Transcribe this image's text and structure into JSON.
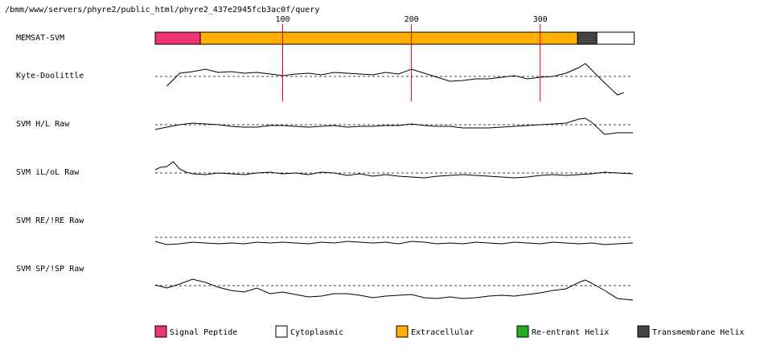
{
  "path_title": "/bmm/www/servers/phyre2/public_html/phyre2_437e2945fcb3ac0f/query",
  "chart_data": {
    "type": "line",
    "x_range": [
      1,
      372
    ],
    "x_ticks": [
      100,
      200,
      300
    ],
    "tracks": [
      {
        "label": "MEMSAT-SVM",
        "kind": "segments"
      },
      {
        "label": "Kyte-Doolittle",
        "kind": "line"
      },
      {
        "label": "SVM H/L Raw",
        "kind": "line"
      },
      {
        "label": "SVM iL/oL Raw",
        "kind": "line"
      },
      {
        "label": "SVM RE/!RE Raw",
        "kind": "line"
      },
      {
        "label": "SVM SP/!SP Raw",
        "kind": "line"
      }
    ],
    "memsat_segments": [
      {
        "class": "Signal Peptide",
        "start": 1,
        "end": 35
      },
      {
        "class": "Extracellular",
        "start": 36,
        "end": 328
      },
      {
        "class": "Transmembrane Helix",
        "start": 329,
        "end": 343
      },
      {
        "class": "Cytoplasmic",
        "start": 344,
        "end": 372
      }
    ],
    "series": [
      {
        "track": "Kyte-Doolittle",
        "x": [
          10,
          20,
          30,
          40,
          50,
          60,
          70,
          80,
          90,
          100,
          110,
          120,
          130,
          140,
          150,
          160,
          170,
          180,
          190,
          200,
          210,
          220,
          230,
          240,
          250,
          260,
          270,
          280,
          290,
          300,
          310,
          320,
          330,
          335,
          340,
          350,
          360,
          365
        ],
        "y": [
          -1.2,
          0.4,
          0.6,
          0.9,
          0.5,
          0.6,
          0.4,
          0.5,
          0.3,
          0.1,
          0.3,
          0.4,
          0.2,
          0.5,
          0.4,
          0.3,
          0.2,
          0.5,
          0.3,
          0.9,
          0.4,
          -0.1,
          -0.6,
          -0.5,
          -0.3,
          -0.3,
          -0.1,
          0.1,
          -0.3,
          -0.1,
          0.0,
          0.4,
          1.1,
          1.6,
          0.8,
          -0.8,
          -2.3,
          -2.0
        ]
      },
      {
        "track": "SVM H/L Raw",
        "x": [
          1,
          10,
          20,
          30,
          40,
          50,
          60,
          70,
          80,
          90,
          100,
          110,
          120,
          130,
          140,
          150,
          160,
          170,
          180,
          190,
          200,
          210,
          220,
          230,
          240,
          250,
          260,
          270,
          280,
          290,
          300,
          310,
          320,
          330,
          335,
          340,
          350,
          360,
          372
        ],
        "y": [
          -0.6,
          -0.3,
          0.0,
          0.2,
          0.1,
          0.0,
          -0.2,
          -0.3,
          -0.3,
          -0.1,
          -0.1,
          -0.2,
          -0.3,
          -0.2,
          -0.1,
          -0.3,
          -0.2,
          -0.2,
          -0.1,
          -0.1,
          0.1,
          -0.1,
          -0.2,
          -0.2,
          -0.4,
          -0.4,
          -0.4,
          -0.3,
          -0.2,
          -0.1,
          0.0,
          0.1,
          0.2,
          0.7,
          0.8,
          0.3,
          -1.2,
          -1.0,
          -1.0
        ]
      },
      {
        "track": "SVM iL/oL Raw",
        "x": [
          1,
          5,
          10,
          15,
          20,
          25,
          30,
          40,
          50,
          60,
          70,
          80,
          90,
          100,
          110,
          120,
          130,
          140,
          150,
          160,
          170,
          180,
          190,
          200,
          210,
          220,
          230,
          240,
          250,
          260,
          270,
          280,
          290,
          300,
          310,
          320,
          330,
          340,
          350,
          360,
          372
        ],
        "y": [
          0.4,
          0.7,
          0.8,
          1.4,
          0.5,
          0.1,
          -0.1,
          -0.2,
          0.0,
          -0.1,
          -0.2,
          0.0,
          0.1,
          -0.1,
          0.0,
          -0.2,
          0.1,
          0.0,
          -0.3,
          -0.1,
          -0.4,
          -0.2,
          -0.4,
          -0.5,
          -0.6,
          -0.4,
          -0.3,
          -0.2,
          -0.3,
          -0.4,
          -0.5,
          -0.6,
          -0.5,
          -0.3,
          -0.2,
          -0.3,
          -0.2,
          -0.1,
          0.1,
          0.0,
          -0.1
        ]
      },
      {
        "track": "SVM RE/!RE Raw",
        "x": [
          1,
          10,
          20,
          30,
          40,
          50,
          60,
          70,
          80,
          90,
          100,
          110,
          120,
          130,
          140,
          150,
          160,
          170,
          180,
          190,
          200,
          210,
          220,
          230,
          240,
          250,
          260,
          270,
          280,
          290,
          300,
          310,
          320,
          330,
          340,
          350,
          360,
          372
        ],
        "y": [
          -0.5,
          -0.9,
          -0.8,
          -0.6,
          -0.7,
          -0.8,
          -0.7,
          -0.8,
          -0.6,
          -0.7,
          -0.6,
          -0.7,
          -0.8,
          -0.6,
          -0.7,
          -0.5,
          -0.6,
          -0.7,
          -0.6,
          -0.8,
          -0.5,
          -0.6,
          -0.8,
          -0.7,
          -0.8,
          -0.6,
          -0.7,
          -0.8,
          -0.6,
          -0.7,
          -0.8,
          -0.6,
          -0.7,
          -0.8,
          -0.7,
          -0.9,
          -0.8,
          -0.7
        ]
      },
      {
        "track": "SVM SP/!SP Raw",
        "x": [
          1,
          10,
          20,
          30,
          40,
          50,
          60,
          70,
          80,
          90,
          100,
          110,
          120,
          130,
          140,
          150,
          160,
          170,
          180,
          190,
          200,
          210,
          220,
          230,
          240,
          250,
          260,
          270,
          280,
          290,
          300,
          310,
          320,
          330,
          335,
          340,
          350,
          360,
          372
        ],
        "y": [
          0.1,
          -0.3,
          0.2,
          0.8,
          0.4,
          -0.2,
          -0.6,
          -0.8,
          -0.3,
          -1.0,
          -0.8,
          -1.1,
          -1.4,
          -1.3,
          -1.0,
          -1.0,
          -1.2,
          -1.5,
          -1.3,
          -1.2,
          -1.1,
          -1.5,
          -1.6,
          -1.4,
          -1.6,
          -1.5,
          -1.3,
          -1.2,
          -1.3,
          -1.1,
          -0.9,
          -0.6,
          -0.4,
          0.4,
          0.7,
          0.3,
          -0.6,
          -1.6,
          -1.8
        ]
      }
    ]
  },
  "legend": [
    {
      "label": "Signal Peptide",
      "color": "#ee3377"
    },
    {
      "label": "Cytoplasmic",
      "color": "#ffffff"
    },
    {
      "label": "Extracellular",
      "color": "#ffb000"
    },
    {
      "label": "Re-entrant Helix",
      "color": "#22b022"
    },
    {
      "label": "Transmembrane Helix",
      "color": "#444444"
    }
  ]
}
